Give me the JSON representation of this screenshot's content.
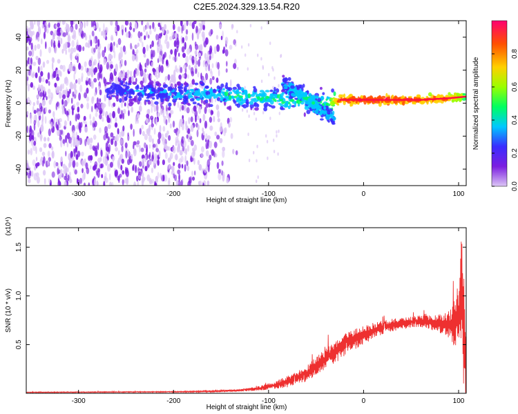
{
  "title": "C2E5.2024.329.13.54.R20",
  "chart_data": [
    {
      "type": "heatmap",
      "xlabel": "Height of straight line (km)",
      "ylabel": "Frequency (Hz)",
      "xlim": [
        -355,
        108
      ],
      "ylim": [
        -50,
        50
      ],
      "xticks": [
        -300,
        -200,
        -100,
        0,
        100
      ],
      "yticks": [
        -40,
        -20,
        0,
        20,
        40
      ],
      "colorbar": {
        "label": "Normalized spectral amplitude",
        "range": [
          0,
          1
        ],
        "ticks": [
          "0.0",
          "0.2",
          "0.4",
          "0.6",
          "0.8"
        ],
        "colors": [
          "#dcc6f5",
          "#7b1fe0",
          "#3a2cff",
          "#00c8ff",
          "#00ff60",
          "#9aff00",
          "#ffd000",
          "#ff5000",
          "#ff0070"
        ]
      },
      "ridge": {
        "x": [
          -270,
          -240,
          -200,
          -160,
          -130,
          -100,
          -80,
          -60,
          -40,
          -25,
          0,
          30,
          60,
          90,
          108
        ],
        "frequency": [
          8,
          7,
          6,
          5,
          4,
          3,
          2,
          1,
          0,
          2,
          2,
          2,
          2,
          3,
          4
        ],
        "amplitude": [
          0.3,
          0.3,
          0.35,
          0.4,
          0.45,
          0.45,
          0.5,
          0.5,
          0.5,
          0.9,
          0.95,
          0.95,
          0.9,
          0.85,
          0.6
        ]
      },
      "branch": {
        "x": [
          -85,
          -75,
          -60,
          -45,
          -30
        ],
        "frequency": [
          12,
          8,
          3,
          -4,
          -10
        ],
        "amplitude": [
          0.35,
          0.4,
          0.45,
          0.4,
          0.3
        ]
      },
      "noise_region": {
        "x_start": -355,
        "x_end": -130,
        "amplitude": 0.25
      }
    },
    {
      "type": "line",
      "xlabel": "Height of straight line (km)",
      "ylabel": "SNR (10 * v/v)",
      "y_multiplier": "(x10⁴)",
      "xlim": [
        -355,
        108
      ],
      "ylim": [
        0,
        1.7
      ],
      "xticks": [
        -300,
        -200,
        -100,
        0,
        100
      ],
      "yticks": [
        "0.5",
        "1.0",
        "1.5"
      ],
      "ytick_values": [
        0.5,
        1.0,
        1.5
      ],
      "color": "#ee3030",
      "envelope": {
        "x": [
          -355,
          -200,
          -160,
          -130,
          -110,
          -95,
          -80,
          -60,
          -40,
          -20,
          0,
          20,
          40,
          60,
          80,
          90,
          95,
          100,
          103,
          106,
          108
        ],
        "mid": [
          0.01,
          0.015,
          0.02,
          0.03,
          0.05,
          0.08,
          0.12,
          0.2,
          0.35,
          0.5,
          0.6,
          0.68,
          0.72,
          0.74,
          0.72,
          0.7,
          0.72,
          0.8,
          1.0,
          0.6,
          0.3
        ],
        "spread": [
          0.003,
          0.004,
          0.006,
          0.01,
          0.02,
          0.03,
          0.05,
          0.07,
          0.09,
          0.1,
          0.08,
          0.06,
          0.05,
          0.05,
          0.08,
          0.12,
          0.2,
          0.3,
          0.6,
          0.5,
          0.3
        ]
      }
    }
  ]
}
